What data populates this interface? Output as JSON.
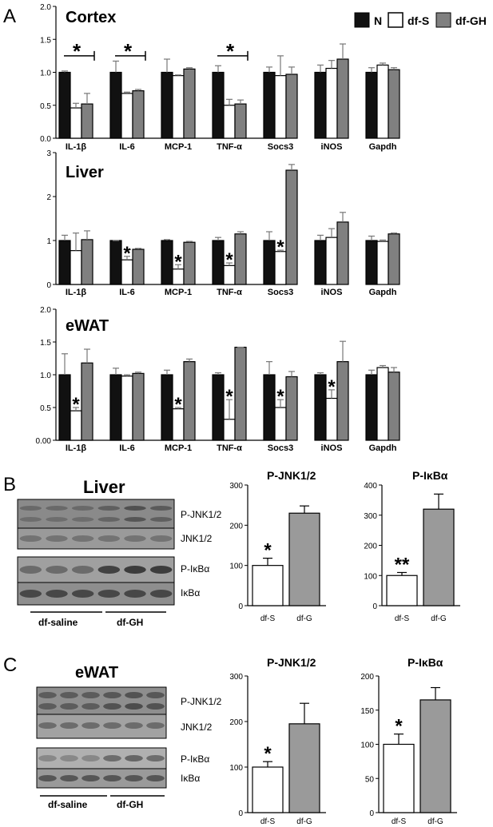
{
  "panel_labels": {
    "A": "A",
    "B": "B",
    "C": "C"
  },
  "legend": [
    {
      "label": "N",
      "fill": "#111111"
    },
    {
      "label": "df-S",
      "fill": "#ffffff"
    },
    {
      "label": "df-GH",
      "fill": "#808080"
    }
  ],
  "blots": {
    "liver": {
      "title": "Liver",
      "rows": [
        "P-JNK1/2",
        "JNK1/2",
        "P-IκBα",
        "IκBα"
      ],
      "groups": [
        "df-saline",
        "df-GH"
      ]
    },
    "ewat": {
      "title": "eWAT",
      "rows": [
        "P-JNK1/2",
        "JNK1/2",
        "P-IκBα",
        "IκBα"
      ],
      "groups": [
        "df-saline",
        "df-GH"
      ]
    }
  },
  "chart_data": [
    {
      "id": "cortex",
      "type": "bar",
      "title": "Cortex",
      "categories": [
        "IL-1β",
        "IL-6",
        "MCP-1",
        "TNF-α",
        "Socs3",
        "iNOS",
        "Gapdh"
      ],
      "ylim": [
        0,
        2.0
      ],
      "yticks": [
        "0.0",
        "0.5",
        "1.0",
        "1.5",
        "2.0"
      ],
      "series": [
        {
          "name": "N",
          "values": [
            1.0,
            1.0,
            1.0,
            1.0,
            1.0,
            1.0,
            1.0
          ],
          "errors": [
            0.02,
            0.17,
            0.2,
            0.1,
            0.08,
            0.11,
            0.07
          ]
        },
        {
          "name": "df-S",
          "values": [
            0.46,
            0.68,
            0.95,
            0.5,
            0.95,
            1.06,
            1.11
          ],
          "errors": [
            0.07,
            0.02,
            0.01,
            0.09,
            0.3,
            0.12,
            0.03
          ]
        },
        {
          "name": "df-GH",
          "values": [
            0.52,
            0.72,
            1.05,
            0.52,
            0.97,
            1.2,
            1.04
          ],
          "errors": [
            0.16,
            0.02,
            0.02,
            0.06,
            0.11,
            0.23,
            0.03
          ]
        }
      ],
      "significance": [
        {
          "category": "IL-1β",
          "label": "*",
          "bracket": true
        },
        {
          "category": "IL-6",
          "label": "*",
          "bracket": true
        },
        {
          "category": "TNF-α",
          "label": "*",
          "bracket": true
        }
      ]
    },
    {
      "id": "liver",
      "type": "bar",
      "title": "Liver",
      "categories": [
        "IL-1β",
        "IL-6",
        "MCP-1",
        "TNF-α",
        "Socs3",
        "iNOS",
        "Gapdh"
      ],
      "ylim": [
        0,
        3
      ],
      "yticks": [
        "0",
        "1",
        "2",
        "3"
      ],
      "series": [
        {
          "name": "N",
          "values": [
            1.0,
            1.0,
            1.0,
            1.0,
            1.0,
            1.0,
            1.0
          ],
          "errors": [
            0.12,
            0.0,
            0.02,
            0.07,
            0.2,
            0.12,
            0.1
          ]
        },
        {
          "name": "df-S",
          "values": [
            0.77,
            0.56,
            0.35,
            0.43,
            0.75,
            1.07,
            0.98
          ],
          "errors": [
            0.4,
            0.08,
            0.1,
            0.06,
            0.03,
            0.2,
            0.03
          ]
        },
        {
          "name": "df-GH",
          "values": [
            1.02,
            0.8,
            0.96,
            1.15,
            2.6,
            1.42,
            1.15
          ],
          "errors": [
            0.2,
            0.02,
            0.02,
            0.05,
            0.13,
            0.22,
            0.02
          ]
        }
      ],
      "significance": [
        {
          "category": "IL-6",
          "label": "*"
        },
        {
          "category": "MCP-1",
          "label": "*"
        },
        {
          "category": "TNF-α",
          "label": "*"
        },
        {
          "category": "Socs3",
          "label": "*"
        }
      ]
    },
    {
      "id": "ewat",
      "type": "bar",
      "title": "eWAT",
      "categories": [
        "IL-1β",
        "IL-6",
        "MCP-1",
        "TNF-α",
        "Socs3",
        "iNOS",
        "Gapdh"
      ],
      "ylim": [
        0,
        2.0
      ],
      "yticks": [
        "0.00",
        "0.5",
        "1.0",
        "1.5",
        "2.0"
      ],
      "series": [
        {
          "name": "N",
          "values": [
            1.0,
            1.0,
            1.0,
            1.0,
            1.0,
            1.0,
            1.0
          ],
          "errors": [
            0.32,
            0.1,
            0.07,
            0.03,
            0.2,
            0.03,
            0.07
          ]
        },
        {
          "name": "df-S",
          "values": [
            0.45,
            0.98,
            0.48,
            0.32,
            0.5,
            0.64,
            1.11
          ],
          "errors": [
            0.05,
            0.02,
            0.02,
            0.3,
            0.12,
            0.13,
            0.03
          ]
        },
        {
          "name": "df-GH",
          "values": [
            1.18,
            1.02,
            1.2,
            1.42,
            0.97,
            1.2,
            1.04
          ],
          "errors": [
            0.21,
            0.02,
            0.04,
            0.0,
            0.08,
            0.31,
            0.07
          ]
        }
      ],
      "significance": [
        {
          "category": "IL-1β",
          "label": "*"
        },
        {
          "category": "MCP-1",
          "label": "*"
        },
        {
          "category": "TNF-α",
          "label": "*"
        },
        {
          "category": "Socs3",
          "label": "*"
        },
        {
          "category": "iNOS",
          "label": "*"
        }
      ]
    },
    {
      "id": "liver-pjnk",
      "type": "bar",
      "title": "P-JNK1/2",
      "categories": [
        "df-S",
        "df-G"
      ],
      "ylim": [
        0,
        300
      ],
      "yticks": [
        "0",
        "100",
        "200",
        "300"
      ],
      "values": [
        100,
        230
      ],
      "errors": [
        18,
        18
      ],
      "fills": [
        "#ffffff",
        "#9a9a9a"
      ],
      "significance": [
        {
          "category": "df-S",
          "label": "*"
        }
      ]
    },
    {
      "id": "liver-pikba",
      "type": "bar",
      "title": "P-IκBα",
      "categories": [
        "df-S",
        "df-G"
      ],
      "ylim": [
        0,
        400
      ],
      "yticks": [
        "0",
        "100",
        "200",
        "300",
        "400"
      ],
      "values": [
        100,
        320
      ],
      "errors": [
        10,
        50
      ],
      "fills": [
        "#ffffff",
        "#9a9a9a"
      ],
      "significance": [
        {
          "category": "df-S",
          "label": "**"
        }
      ]
    },
    {
      "id": "ewat-pjnk",
      "type": "bar",
      "title": "P-JNK1/2",
      "categories": [
        "df-S",
        "df-G"
      ],
      "ylim": [
        0,
        300
      ],
      "yticks": [
        "0",
        "100",
        "200",
        "300"
      ],
      "values": [
        100,
        195
      ],
      "errors": [
        12,
        45
      ],
      "fills": [
        "#ffffff",
        "#9a9a9a"
      ],
      "significance": [
        {
          "category": "df-S",
          "label": "*"
        }
      ]
    },
    {
      "id": "ewat-pikba",
      "type": "bar",
      "title": "P-IκBα",
      "categories": [
        "df-S",
        "df-G"
      ],
      "ylim": [
        0,
        200
      ],
      "yticks": [
        "0",
        "50",
        "100",
        "150",
        "200"
      ],
      "values": [
        100,
        165
      ],
      "errors": [
        15,
        18
      ],
      "fills": [
        "#ffffff",
        "#9a9a9a"
      ],
      "significance": [
        {
          "category": "df-S",
          "label": "*"
        }
      ]
    }
  ]
}
